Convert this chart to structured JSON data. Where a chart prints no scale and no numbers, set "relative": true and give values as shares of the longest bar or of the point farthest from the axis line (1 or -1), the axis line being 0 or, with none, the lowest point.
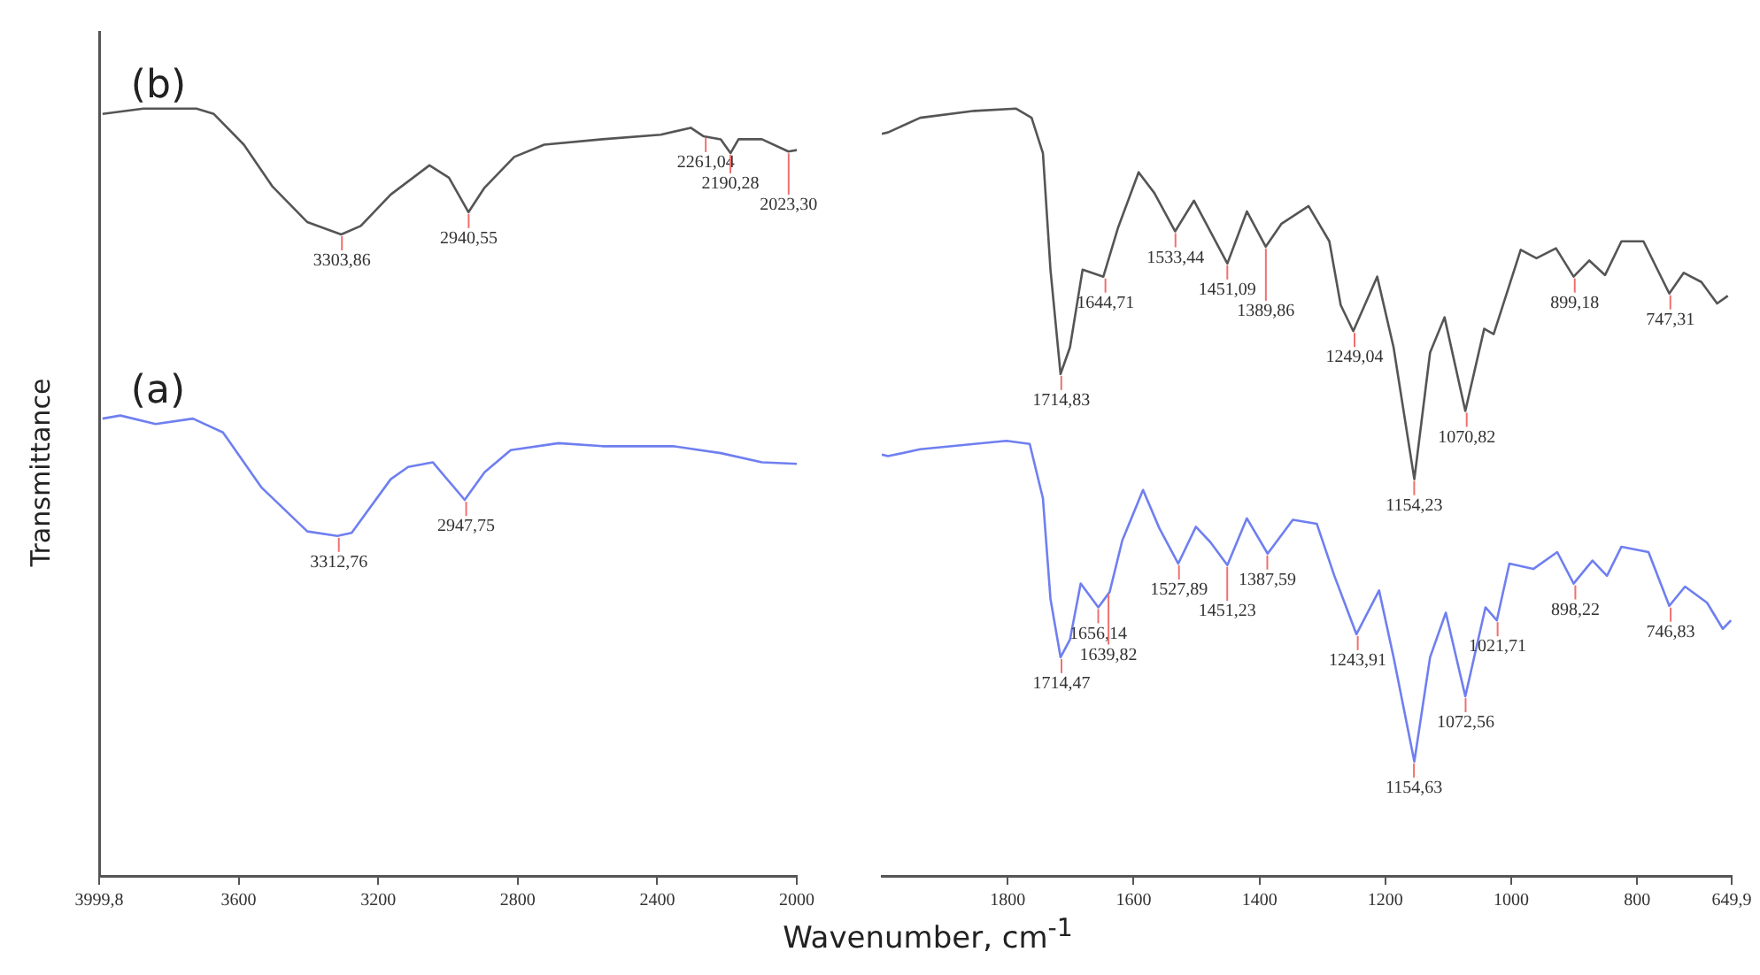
{
  "chart_data": [
    {
      "type": "line",
      "relative": true,
      "xlabel": "Wavenumber, cm$^{-1}$",
      "ylabel": "Transmittance",
      "xlim": [
        3999.8,
        2000
      ],
      "xticks": [
        {
          "value": 3999.8,
          "label": "3999,8"
        },
        3600,
        3200,
        2800,
        2400,
        2000
      ],
      "grid": false,
      "legend": false,
      "marker": "none",
      "line_style": "solid",
      "series": [
        {
          "name": "(b)",
          "color": "#555555",
          "x": [
            3990,
            3873,
            3721,
            3671,
            3585,
            3504,
            3403,
            3306,
            3250,
            3164,
            3053,
            2997,
            2941,
            2895,
            2810,
            2724,
            2557,
            2390,
            2304,
            2268,
            2218,
            2190,
            2167,
            2100,
            2024,
            2000
          ],
          "values": [
            0.993,
            1.0,
            1.0,
            0.993,
            0.953,
            0.899,
            0.852,
            0.836,
            0.847,
            0.888,
            0.926,
            0.91,
            0.865,
            0.897,
            0.937,
            0.953,
            0.96,
            0.966,
            0.975,
            0.964,
            0.96,
            0.942,
            0.96,
            0.96,
            0.944,
            0.946
          ]
        },
        {
          "name": "(a)",
          "color": "#6f7ff0",
          "x": [
            3990,
            3939,
            3838,
            3731,
            3645,
            3534,
            3403,
            3317,
            3276,
            3164,
            3114,
            3043,
            2952,
            2895,
            2820,
            2683,
            2557,
            2354,
            2218,
            2100,
            2000
          ],
          "values": [
            0.596,
            0.6,
            0.589,
            0.596,
            0.578,
            0.506,
            0.449,
            0.443,
            0.447,
            0.517,
            0.533,
            0.539,
            0.49,
            0.526,
            0.555,
            0.564,
            0.56,
            0.56,
            0.551,
            0.539,
            0.537
          ]
        }
      ],
      "annotations": [
        {
          "text": "3303,86",
          "x": 3303.86,
          "y": 0.836
        },
        {
          "text": "2940,55",
          "x": 2940.55,
          "y": 0.865
        },
        {
          "text": "2261,04",
          "x": 2261.04,
          "y": 0.964
        },
        {
          "text": "2190,28",
          "x": 2190.28,
          "y": 0.942
        },
        {
          "text": "2023,30",
          "x": 2023.3,
          "y": 0.944
        },
        {
          "text": "3312,76",
          "x": 3312.76,
          "y": 0.443
        },
        {
          "text": "2947,75",
          "x": 2947.75,
          "y": 0.49
        }
      ]
    },
    {
      "type": "line",
      "relative": true,
      "xlim": [
        2000,
        649.9
      ],
      "xticks": [
        1800,
        1600,
        1400,
        1200,
        1000,
        800,
        {
          "value": 649.9,
          "label": "649,9"
        }
      ],
      "tick_labels": "x",
      "grid": false,
      "legend": false,
      "marker": "none",
      "line_style": "solid",
      "series": [
        {
          "color": "#555555",
          "x": [
            2000,
            1990,
            1939,
            1853,
            1787,
            1762,
            1744,
            1732,
            1716,
            1701,
            1681,
            1648,
            1625,
            1592,
            1567,
            1534,
            1504,
            1451,
            1420,
            1390,
            1365,
            1322,
            1289,
            1271,
            1251,
            1213,
            1187,
            1154,
            1129,
            1106,
            1073,
            1043,
            1028,
            985,
            960,
            929,
            901,
            876,
            851,
            825,
            790,
            749,
            726,
            698,
            673,
            656
          ],
          "values": [
            0.967,
            0.969,
            0.988,
            0.997,
            1.0,
            0.988,
            0.942,
            0.79,
            0.654,
            0.689,
            0.79,
            0.781,
            0.844,
            0.917,
            0.89,
            0.84,
            0.88,
            0.798,
            0.866,
            0.82,
            0.85,
            0.873,
            0.827,
            0.744,
            0.71,
            0.781,
            0.689,
            0.517,
            0.682,
            0.728,
            0.606,
            0.713,
            0.706,
            0.816,
            0.805,
            0.818,
            0.781,
            0.802,
            0.783,
            0.827,
            0.827,
            0.759,
            0.786,
            0.774,
            0.746,
            0.756
          ]
        },
        {
          "color": "#6f7ff0",
          "x": [
            2000,
            1990,
            1939,
            1853,
            1802,
            1765,
            1744,
            1732,
            1716,
            1701,
            1684,
            1656,
            1638,
            1618,
            1585,
            1559,
            1529,
            1501,
            1478,
            1451,
            1420,
            1387,
            1347,
            1309,
            1281,
            1246,
            1210,
            1187,
            1154,
            1129,
            1104,
            1073,
            1041,
            1023,
            1003,
            965,
            927,
            901,
            871,
            848,
            825,
            782,
            749,
            724,
            689,
            664,
            651
          ],
          "values": [
            0.549,
            0.547,
            0.556,
            0.563,
            0.567,
            0.563,
            0.492,
            0.361,
            0.285,
            0.308,
            0.381,
            0.35,
            0.37,
            0.437,
            0.503,
            0.453,
            0.407,
            0.455,
            0.435,
            0.405,
            0.466,
            0.42,
            0.464,
            0.459,
            0.391,
            0.315,
            0.372,
            0.285,
            0.149,
            0.285,
            0.343,
            0.234,
            0.35,
            0.333,
            0.407,
            0.4,
            0.422,
            0.381,
            0.411,
            0.391,
            0.429,
            0.422,
            0.352,
            0.377,
            0.356,
            0.322,
            0.333
          ]
        }
      ],
      "annotations": [
        {
          "text": "1714,83",
          "x": 1714.83,
          "y": 0.654
        },
        {
          "text": "1644,71",
          "x": 1644.71,
          "y": 0.781
        },
        {
          "text": "1533,44",
          "x": 1533.44,
          "y": 0.84
        },
        {
          "text": "1451,09",
          "x": 1451.09,
          "y": 0.798
        },
        {
          "text": "1389,86",
          "x": 1389.86,
          "y": 0.82
        },
        {
          "text": "1249,04",
          "x": 1249.04,
          "y": 0.71
        },
        {
          "text": "1154,23",
          "x": 1154.23,
          "y": 0.517
        },
        {
          "text": "1070,82",
          "x": 1070.82,
          "y": 0.606
        },
        {
          "text": "899,18",
          "x": 899.18,
          "y": 0.781
        },
        {
          "text": "747,31",
          "x": 747.31,
          "y": 0.759
        },
        {
          "text": "1714,47",
          "x": 1714.47,
          "y": 0.285
        },
        {
          "text": "1656,14",
          "x": 1656.14,
          "y": 0.35
        },
        {
          "text": "1639,82",
          "x": 1639.82,
          "y": 0.37
        },
        {
          "text": "1527,89",
          "x": 1527.89,
          "y": 0.407
        },
        {
          "text": "1451,23",
          "x": 1451.23,
          "y": 0.405
        },
        {
          "text": "1387,59",
          "x": 1387.59,
          "y": 0.42
        },
        {
          "text": "1243,91",
          "x": 1243.91,
          "y": 0.315
        },
        {
          "text": "1154,63",
          "x": 1154.63,
          "y": 0.149
        },
        {
          "text": "1072,56",
          "x": 1072.56,
          "y": 0.234
        },
        {
          "text": "1021,71",
          "x": 1021.71,
          "y": 0.333
        },
        {
          "text": "898,22",
          "x": 898.22,
          "y": 0.381
        },
        {
          "text": "746,83",
          "x": 746.83,
          "y": 0.352
        }
      ]
    }
  ]
}
